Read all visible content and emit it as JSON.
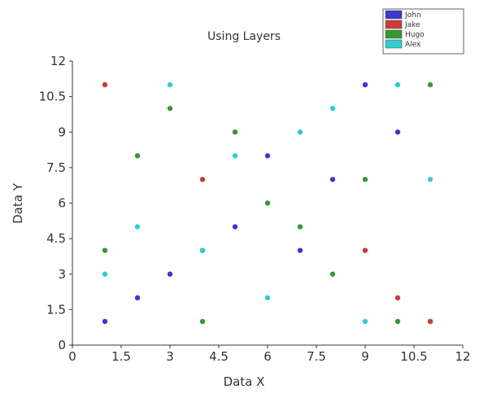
{
  "chart_data": {
    "type": "scatter",
    "title": "Using Layers",
    "xlabel": "Data X",
    "ylabel": "Data Y",
    "xlim": [
      0,
      12
    ],
    "ylim": [
      0,
      12
    ],
    "xticks": [
      "0",
      "1.5",
      "3",
      "4.5",
      "6",
      "7.5",
      "9",
      "10.5",
      "12"
    ],
    "yticks": [
      "0",
      "1.5",
      "3",
      "4.5",
      "6",
      "7.5",
      "9",
      "10.5",
      "12"
    ],
    "grid": false,
    "legend": "top-right",
    "series": [
      {
        "name": "John",
        "color": "#3a3acc",
        "points": [
          [
            1,
            1
          ],
          [
            2,
            2
          ],
          [
            3,
            3
          ],
          [
            4,
            4
          ],
          [
            5,
            5
          ],
          [
            6,
            8
          ],
          [
            7,
            4
          ],
          [
            8,
            7
          ],
          [
            9,
            11
          ],
          [
            10,
            9
          ],
          [
            11,
            1
          ]
        ]
      },
      {
        "name": "Jake",
        "color": "#cc3a3a",
        "points": [
          [
            1,
            11
          ],
          [
            4,
            7
          ],
          [
            9,
            4
          ],
          [
            10,
            2
          ],
          [
            11,
            1
          ]
        ]
      },
      {
        "name": "Hugo",
        "color": "#339933",
        "points": [
          [
            1,
            4
          ],
          [
            2,
            8
          ],
          [
            3,
            10
          ],
          [
            4,
            1
          ],
          [
            5,
            9
          ],
          [
            6,
            6
          ],
          [
            7,
            5
          ],
          [
            8,
            3
          ],
          [
            9,
            7
          ],
          [
            10,
            1
          ],
          [
            11,
            11
          ]
        ]
      },
      {
        "name": "Alex",
        "color": "#33cccc",
        "points": [
          [
            1,
            3
          ],
          [
            2,
            5
          ],
          [
            3,
            11
          ],
          [
            4,
            4
          ],
          [
            5,
            8
          ],
          [
            6,
            2
          ],
          [
            7,
            9
          ],
          [
            8,
            10
          ],
          [
            9,
            1
          ],
          [
            10,
            11
          ],
          [
            11,
            7
          ]
        ]
      }
    ]
  }
}
